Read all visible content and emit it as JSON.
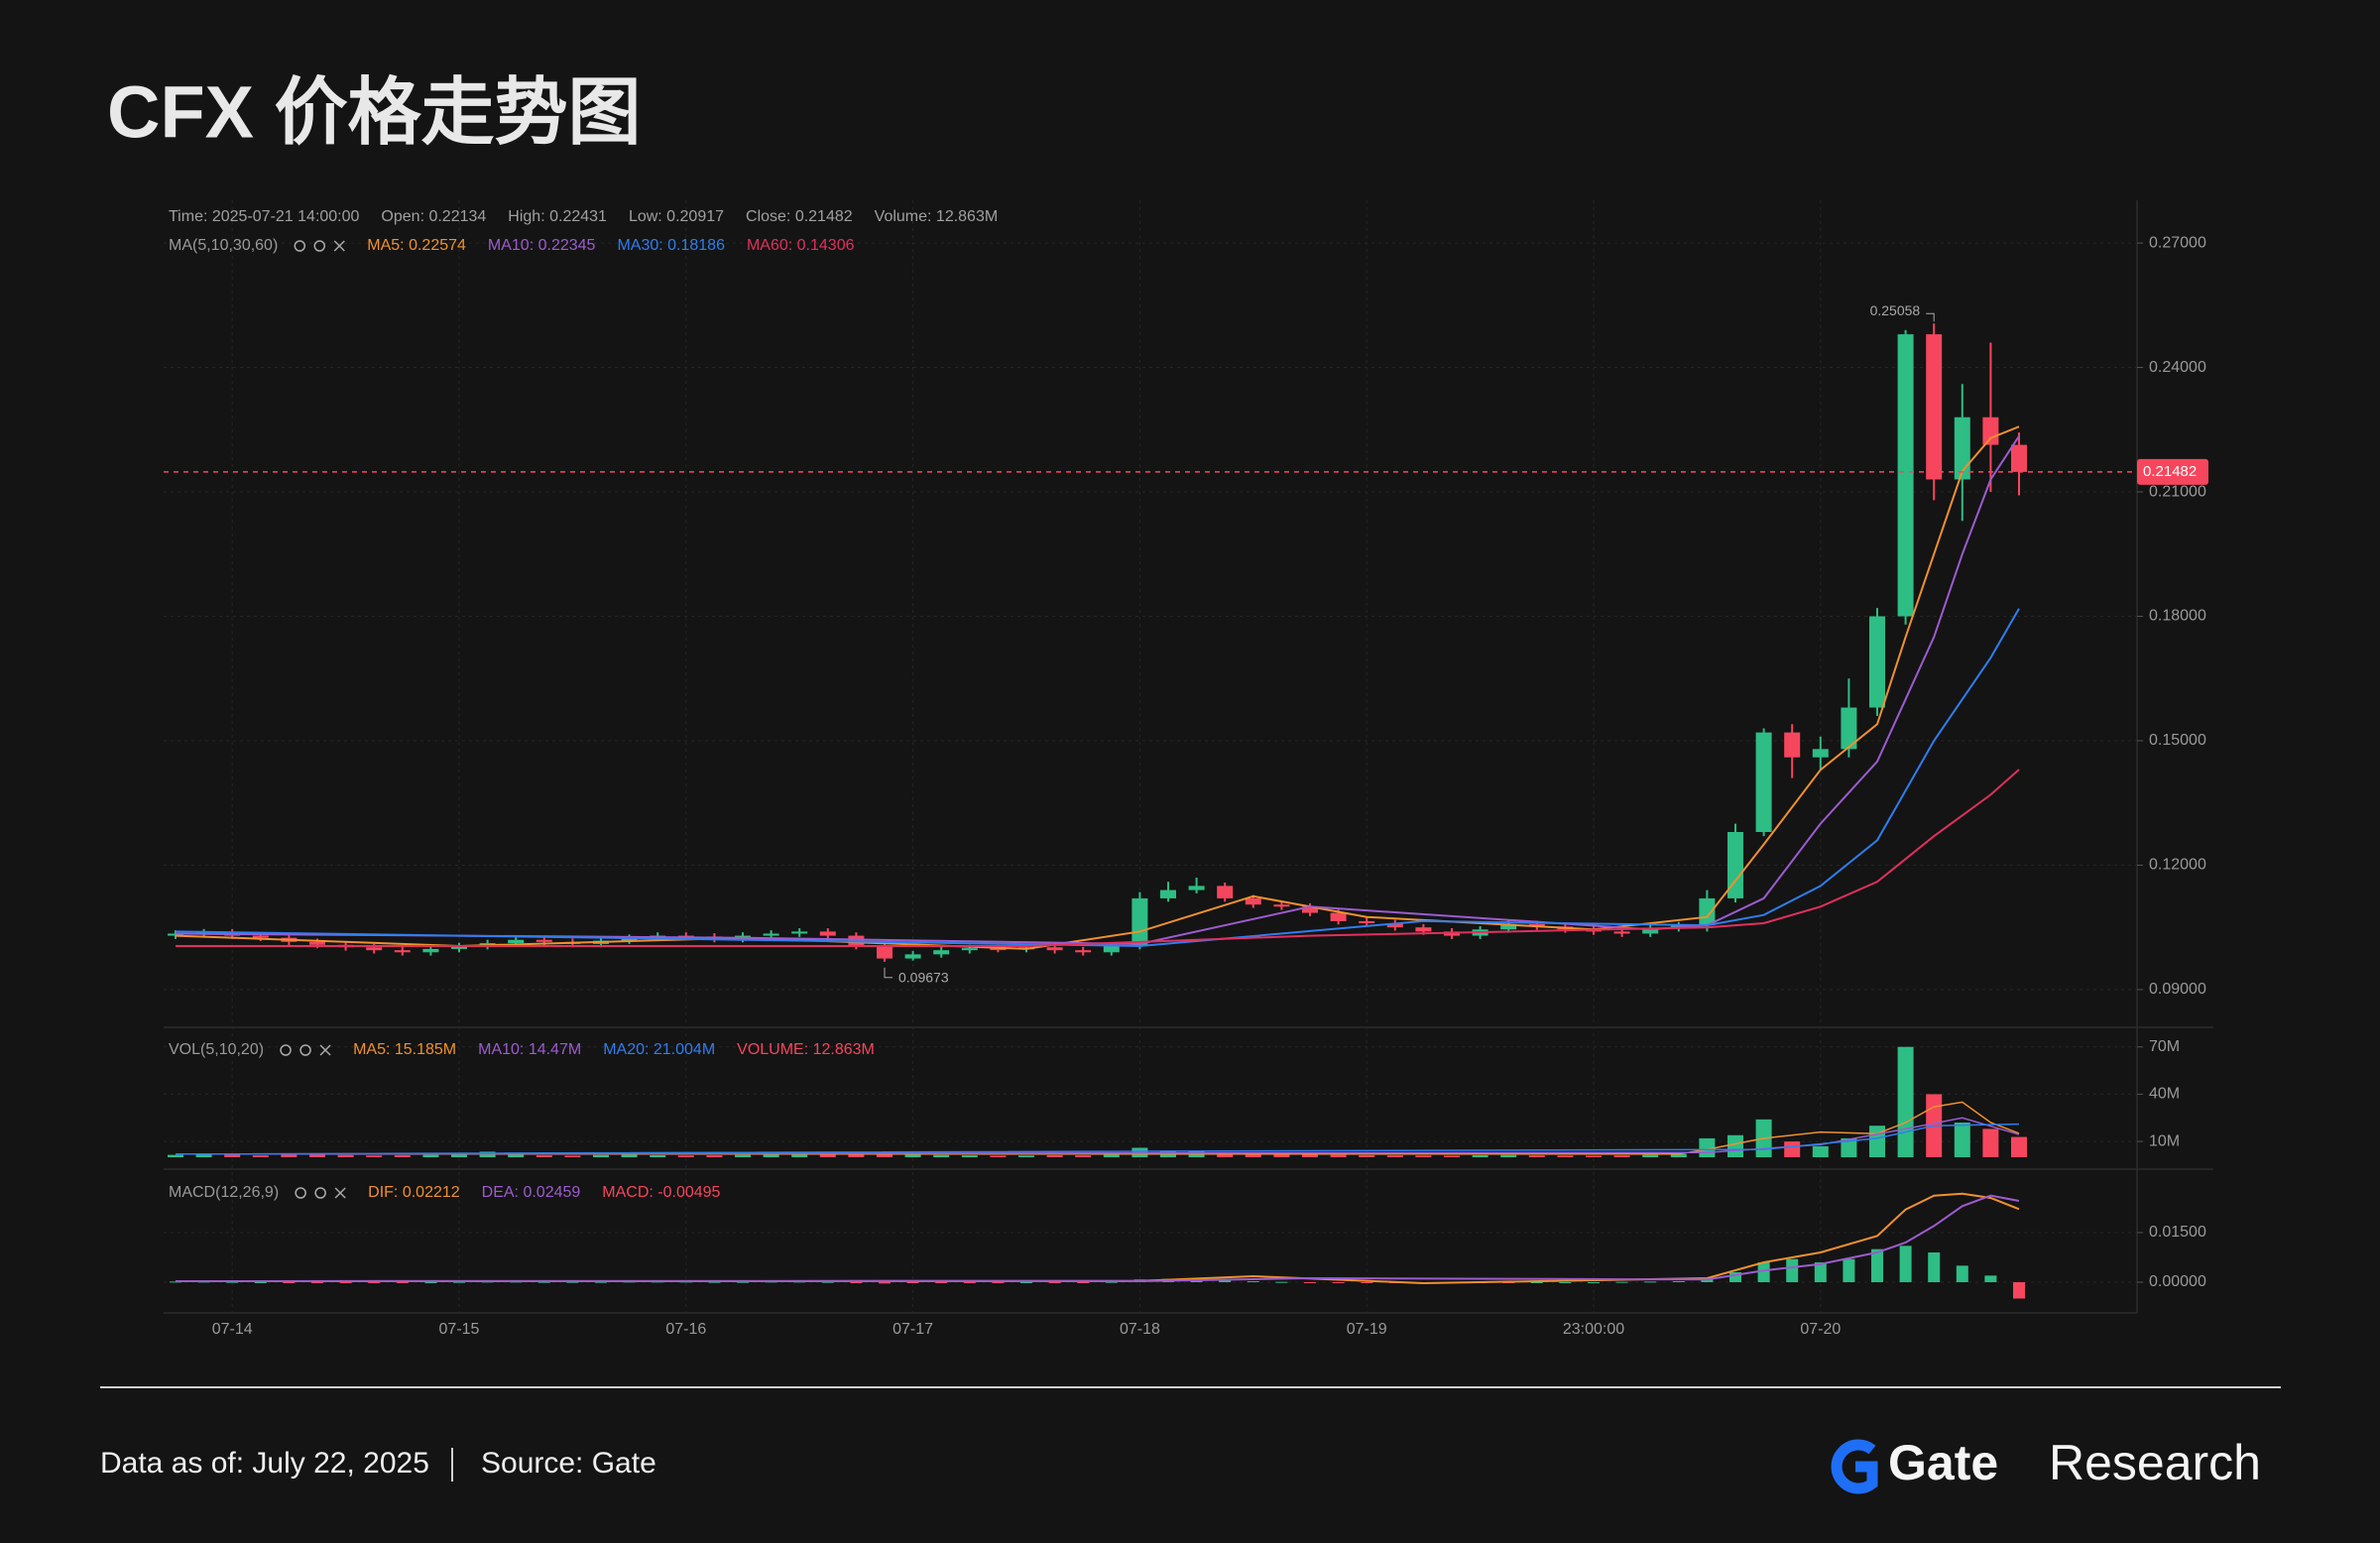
{
  "chart_data": {
    "type": "candlestick",
    "title": "CFX 价格走势图",
    "info": [
      "Time: 2025-07-21 14:00:00",
      "Open: 0.22134",
      "High: 0.22431",
      "Low: 0.20917",
      "Close: 0.21482",
      "Volume: 12.863M"
    ],
    "categories": [
      null,
      null,
      "07-14",
      null,
      null,
      null,
      null,
      null,
      null,
      null,
      "07-15",
      null,
      null,
      null,
      null,
      null,
      null,
      null,
      "07-16",
      null,
      null,
      null,
      null,
      null,
      null,
      null,
      "07-17",
      null,
      null,
      null,
      null,
      null,
      null,
      null,
      "07-18",
      null,
      null,
      null,
      null,
      null,
      null,
      null,
      "07-19",
      null,
      null,
      null,
      null,
      null,
      null,
      null,
      "23:00:00",
      null,
      null,
      null,
      null,
      null,
      null,
      null,
      "07-20",
      null,
      null,
      null,
      null,
      null,
      null,
      null
    ],
    "open": [
      0.103,
      0.1035,
      0.1038,
      0.103,
      0.1025,
      0.1015,
      0.1008,
      0.1002,
      0.0995,
      0.099,
      0.0998,
      0.1005,
      0.1012,
      0.102,
      0.1015,
      0.101,
      0.1018,
      0.1025,
      0.103,
      0.1028,
      0.1022,
      0.103,
      0.1035,
      0.104,
      0.103,
      0.1005,
      0.0975,
      0.0985,
      0.0995,
      0.1,
      0.0998,
      0.1002,
      0.0995,
      0.099,
      0.1005,
      0.112,
      0.114,
      0.115,
      0.112,
      0.1105,
      0.11,
      0.1085,
      0.1065,
      0.106,
      0.105,
      0.104,
      0.103,
      0.1045,
      0.1058,
      0.1052,
      0.1045,
      0.104,
      0.1035,
      0.1048,
      0.1055,
      0.112,
      0.128,
      0.152,
      0.146,
      0.148,
      0.158,
      0.18,
      0.248,
      0.213,
      0.228,
      0.22134
    ],
    "high": [
      0.1043,
      0.1046,
      0.1046,
      0.1038,
      0.1033,
      0.1023,
      0.1016,
      0.101,
      0.1003,
      0.1006,
      0.1013,
      0.102,
      0.1028,
      0.1028,
      0.1023,
      0.1026,
      0.1033,
      0.1038,
      0.1038,
      0.1036,
      0.1038,
      0.1043,
      0.1048,
      0.1048,
      0.1038,
      0.1013,
      0.0993,
      0.1003,
      0.1008,
      0.1008,
      0.101,
      0.101,
      0.1003,
      0.1013,
      0.1135,
      0.116,
      0.117,
      0.1158,
      0.1128,
      0.1113,
      0.1108,
      0.1093,
      0.1073,
      0.1068,
      0.1058,
      0.1048,
      0.1053,
      0.1066,
      0.1066,
      0.106,
      0.1053,
      0.1048,
      0.1056,
      0.1063,
      0.114,
      0.13,
      0.153,
      0.154,
      0.151,
      0.165,
      0.182,
      0.249,
      0.25058,
      0.236,
      0.246,
      0.22431
    ],
    "low": [
      0.1022,
      0.1027,
      0.1022,
      0.1017,
      0.1007,
      0.1,
      0.0994,
      0.0987,
      0.0982,
      0.0982,
      0.099,
      0.0997,
      0.1004,
      0.1007,
      0.1002,
      0.1002,
      0.101,
      0.1017,
      0.102,
      0.1014,
      0.1014,
      0.1022,
      0.1027,
      0.1022,
      0.0997,
      0.09673,
      0.097,
      0.0977,
      0.0987,
      0.099,
      0.099,
      0.0987,
      0.0982,
      0.0982,
      0.0997,
      0.1112,
      0.1132,
      0.1112,
      0.1097,
      0.1092,
      0.1077,
      0.1057,
      0.1052,
      0.1042,
      0.1032,
      0.1022,
      0.1022,
      0.1037,
      0.1044,
      0.1037,
      0.1032,
      0.1027,
      0.1027,
      0.104,
      0.104,
      0.111,
      0.127,
      0.141,
      0.143,
      0.146,
      0.156,
      0.178,
      0.208,
      0.203,
      0.21,
      0.20917
    ],
    "close": [
      0.1035,
      0.1038,
      0.103,
      0.1025,
      0.1015,
      0.1008,
      0.1002,
      0.0995,
      0.099,
      0.0998,
      0.1005,
      0.1012,
      0.102,
      0.1015,
      0.101,
      0.1018,
      0.1025,
      0.103,
      0.1028,
      0.1022,
      0.103,
      0.1035,
      0.104,
      0.103,
      0.1005,
      0.0975,
      0.0985,
      0.0995,
      0.1,
      0.0998,
      0.1002,
      0.0995,
      0.099,
      0.1005,
      0.112,
      0.114,
      0.115,
      0.112,
      0.1105,
      0.11,
      0.1085,
      0.1065,
      0.106,
      0.105,
      0.104,
      0.103,
      0.1045,
      0.1058,
      0.1052,
      0.1045,
      0.104,
      0.1035,
      0.1048,
      0.1055,
      0.112,
      0.128,
      0.152,
      0.146,
      0.148,
      0.158,
      0.18,
      0.248,
      0.213,
      0.228,
      0.22134,
      0.21482
    ],
    "up_color": "#2ebd85",
    "down_color": "#f6465d",
    "ylim": [
      0.0809,
      0.2803
    ],
    "yticks": [
      {
        "value": 0.09,
        "label": "0.09000"
      },
      {
        "value": 0.12,
        "label": "0.12000"
      },
      {
        "value": 0.15,
        "label": "0.15000"
      },
      {
        "value": 0.18,
        "label": "0.18000"
      },
      {
        "value": 0.21,
        "label": "0.21000"
      },
      {
        "value": 0.24,
        "label": "0.24000"
      },
      {
        "value": 0.27,
        "label": "0.27000"
      }
    ],
    "grid": true,
    "ma_title": "MA(5,10,30,60)",
    "series": [
      {
        "name": "MA5: 0.22574",
        "color": "#f0912f",
        "x": [
          0,
          10,
          20,
          30,
          34,
          38,
          42,
          50,
          54,
          56,
          58,
          60,
          61,
          62,
          63,
          64,
          65
        ],
        "values": [
          0.103,
          0.1005,
          0.1025,
          0.0998,
          0.104,
          0.1125,
          0.1075,
          0.1045,
          0.1075,
          0.125,
          0.143,
          0.154,
          0.175,
          0.195,
          0.215,
          0.223,
          0.22574
        ]
      },
      {
        "name": "MA10: 0.22345",
        "color": "#9c5ccf",
        "x": [
          0,
          20,
          34,
          40,
          52,
          54,
          56,
          58,
          60,
          61,
          62,
          63,
          64,
          65
        ],
        "values": [
          0.1035,
          0.1025,
          0.101,
          0.11,
          0.1045,
          0.1055,
          0.112,
          0.13,
          0.145,
          0.16,
          0.175,
          0.195,
          0.213,
          0.22345
        ]
      },
      {
        "name": "MA30: 0.18186",
        "color": "#2f7ef0",
        "x": [
          0,
          20,
          34,
          44,
          54,
          56,
          58,
          60,
          62,
          64,
          65
        ],
        "values": [
          0.104,
          0.102,
          0.1005,
          0.1065,
          0.1055,
          0.108,
          0.115,
          0.126,
          0.15,
          0.17,
          0.18186
        ]
      },
      {
        "name": "MA60: 0.14306",
        "color": "#e0305f",
        "x": [
          0,
          30,
          40,
          54,
          56,
          58,
          60,
          62,
          64,
          65
        ],
        "values": [
          0.1005,
          0.1005,
          0.103,
          0.105,
          0.106,
          0.11,
          0.116,
          0.127,
          0.137,
          0.14306
        ]
      }
    ],
    "volume": {
      "title": "VOL(5,10,20)",
      "label": "VOLUME: 12.863M",
      "values": [
        1.5,
        1.8,
        2.2,
        1.2,
        1.6,
        2.0,
        1.4,
        1.1,
        1.3,
        1.5,
        1.9,
        3.5,
        1.7,
        1.2,
        1.0,
        1.4,
        1.6,
        1.3,
        1.1,
        1.2,
        1.5,
        1.8,
        1.6,
        2.0,
        2.4,
        2.8,
        1.9,
        1.4,
        1.2,
        1.0,
        1.1,
        1.3,
        1.2,
        2.5,
        6.0,
        4.2,
        3.5,
        2.6,
        2.0,
        1.8,
        1.6,
        1.5,
        1.3,
        1.2,
        1.1,
        1.0,
        1.3,
        1.4,
        1.2,
        1.1,
        1.0,
        1.2,
        1.5,
        2.0,
        12,
        14,
        24,
        10,
        7,
        12,
        20,
        70,
        40,
        22,
        18,
        12.863
      ],
      "ylim": [
        0,
        78
      ],
      "yticks": [
        {
          "value": 10,
          "label": "10M"
        },
        {
          "value": 40,
          "label": "40M"
        },
        {
          "value": 70,
          "label": "70M"
        }
      ],
      "series": [
        {
          "name": "MA5: 15.185M",
          "color": "#f0912f",
          "x": [
            0,
            53,
            54,
            56,
            58,
            60,
            61,
            62,
            63,
            64,
            65
          ],
          "values": [
            2,
            2,
            5,
            12,
            16,
            15,
            22,
            32,
            35,
            22,
            15.185
          ]
        },
        {
          "name": "MA10: 14.47M",
          "color": "#9c5ccf",
          "x": [
            0,
            54,
            58,
            61,
            63,
            65
          ],
          "values": [
            2,
            3,
            8,
            18,
            25,
            14.47
          ]
        },
        {
          "name": "MA20: 21.004M",
          "color": "#2f7ef0",
          "x": [
            0,
            56,
            60,
            62,
            65
          ],
          "values": [
            2,
            5,
            12,
            20,
            21.004
          ]
        }
      ]
    },
    "macd": {
      "title": "MACD(12,26,9)",
      "label": "MACD: -0.00495",
      "values": [
        0.0002,
        0.0002,
        0.0001,
        0,
        -0.0001,
        -0.0002,
        -0.0002,
        -0.0001,
        -0.0001,
        0,
        0.0001,
        0.0002,
        0.0002,
        0.0001,
        0.0001,
        0.0001,
        0.0002,
        0.0002,
        0.0002,
        0.0001,
        0.0001,
        0.0002,
        0.0002,
        0.0001,
        -0.0002,
        -0.0004,
        -0.0003,
        -0.0002,
        -0.0001,
        -0.0001,
        0,
        -0.0001,
        -0.0001,
        0.0001,
        0.0008,
        0.001,
        0.0009,
        0.0006,
        0.0003,
        0.0001,
        -0.0001,
        -0.0003,
        -0.0003,
        -0.0003,
        -0.0003,
        -0.0003,
        -0.0002,
        -0.0001,
        0,
        0,
        0,
        0.0001,
        0.0002,
        0.0003,
        0.001,
        0.003,
        0.006,
        0.007,
        0.006,
        0.007,
        0.01,
        0.011,
        0.009,
        0.005,
        0.002,
        -0.00495
      ],
      "ylim": [
        -0.0093,
        0.0342
      ],
      "yticks": [
        {
          "value": 0,
          "label": "0.00000"
        },
        {
          "value": 0.015,
          "label": "0.01500"
        }
      ],
      "series": [
        {
          "name": "DIF: 0.02212",
          "color": "#f0912f",
          "x": [
            0,
            34,
            38,
            44,
            54,
            56,
            58,
            60,
            61,
            62,
            63,
            64,
            65
          ],
          "values": [
            0.0003,
            0.0004,
            0.0018,
            -0.0003,
            0.0012,
            0.006,
            0.009,
            0.014,
            0.022,
            0.0262,
            0.0268,
            0.0255,
            0.02212
          ]
        },
        {
          "name": "DEA: 0.02459",
          "color": "#9c5ccf",
          "x": [
            0,
            34,
            40,
            54,
            56,
            58,
            60,
            61,
            62,
            63,
            64,
            65
          ],
          "values": [
            0.0003,
            0.0003,
            0.0012,
            0.0008,
            0.0035,
            0.0055,
            0.009,
            0.012,
            0.017,
            0.023,
            0.0262,
            0.02459
          ]
        }
      ]
    }
  },
  "footer": {
    "date": "Data as of: July 22, 2025",
    "source": "Source: Gate",
    "brand": "Gate",
    "brand_suffix": "Research"
  }
}
